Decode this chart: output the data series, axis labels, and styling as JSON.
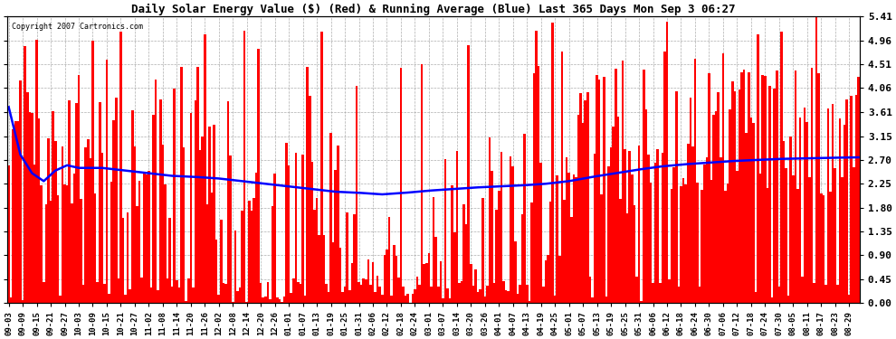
{
  "title": "Daily Solar Energy Value ($) (Red) & Running Average (Blue) Last 365 Days Mon Sep 3 06:27",
  "copyright": "Copyright 2007 Cartronics.com",
  "bar_color": "#ff0000",
  "avg_color": "#0000ff",
  "background_color": "#ffffff",
  "plot_bg_color": "#ffffff",
  "grid_color": "#999999",
  "yticks": [
    0.0,
    0.45,
    0.9,
    1.35,
    1.8,
    2.25,
    2.7,
    3.15,
    3.61,
    4.06,
    4.51,
    4.96,
    5.41
  ],
  "ymax": 5.41,
  "xticklabels": [
    "09-03",
    "09-09",
    "09-15",
    "09-21",
    "09-27",
    "10-03",
    "10-09",
    "10-15",
    "10-21",
    "10-27",
    "11-02",
    "11-08",
    "11-14",
    "11-20",
    "11-26",
    "12-02",
    "12-08",
    "12-14",
    "12-20",
    "12-26",
    "01-01",
    "01-07",
    "01-13",
    "01-19",
    "01-25",
    "01-31",
    "02-06",
    "02-12",
    "02-18",
    "02-24",
    "03-01",
    "03-07",
    "03-14",
    "03-20",
    "03-26",
    "04-01",
    "04-07",
    "04-13",
    "04-19",
    "04-25",
    "05-01",
    "05-07",
    "05-13",
    "05-19",
    "05-25",
    "05-31",
    "06-06",
    "06-12",
    "06-18",
    "06-24",
    "06-30",
    "07-06",
    "07-12",
    "07-18",
    "07-24",
    "07-30",
    "08-05",
    "08-11",
    "08-17",
    "08-23",
    "08-29"
  ],
  "avg_points": [
    [
      0,
      3.7
    ],
    [
      5,
      2.8
    ],
    [
      10,
      2.45
    ],
    [
      15,
      2.3
    ],
    [
      20,
      2.5
    ],
    [
      25,
      2.6
    ],
    [
      30,
      2.55
    ],
    [
      40,
      2.55
    ],
    [
      50,
      2.5
    ],
    [
      60,
      2.45
    ],
    [
      70,
      2.4
    ],
    [
      80,
      2.38
    ],
    [
      90,
      2.35
    ],
    [
      100,
      2.3
    ],
    [
      110,
      2.25
    ],
    [
      120,
      2.2
    ],
    [
      130,
      2.15
    ],
    [
      140,
      2.1
    ],
    [
      150,
      2.08
    ],
    [
      160,
      2.05
    ],
    [
      170,
      2.08
    ],
    [
      180,
      2.12
    ],
    [
      190,
      2.15
    ],
    [
      200,
      2.18
    ],
    [
      210,
      2.2
    ],
    [
      220,
      2.22
    ],
    [
      230,
      2.25
    ],
    [
      240,
      2.3
    ],
    [
      250,
      2.38
    ],
    [
      260,
      2.45
    ],
    [
      270,
      2.52
    ],
    [
      280,
      2.58
    ],
    [
      290,
      2.62
    ],
    [
      300,
      2.65
    ],
    [
      310,
      2.68
    ],
    [
      320,
      2.7
    ],
    [
      330,
      2.72
    ],
    [
      340,
      2.73
    ],
    [
      350,
      2.74
    ],
    [
      364,
      2.75
    ]
  ]
}
